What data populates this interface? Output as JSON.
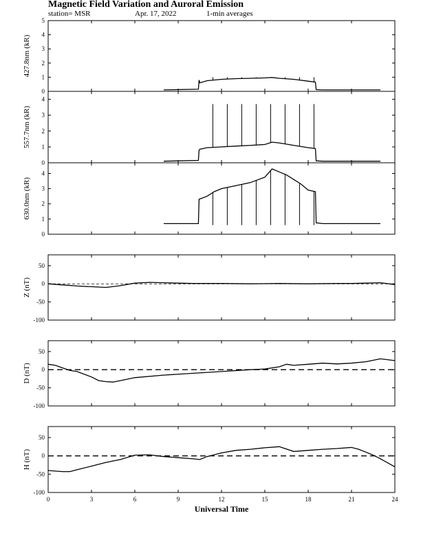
{
  "header": {
    "title": "Magnetic Field Variation and Auroral Emission",
    "station": "station= MSR",
    "date": "Apr. 17, 2022",
    "averaging": "1-min averages"
  },
  "colors": {
    "trace": "#000000",
    "background": "#ffffff"
  },
  "chart_data": [
    {
      "type": "line",
      "ylabel": "427.8nm (kR)",
      "ylim": [
        0,
        5
      ],
      "yticks": [
        0,
        1,
        2,
        3,
        4,
        5
      ],
      "xlim": [
        0,
        24
      ],
      "x": [
        8.0,
        10.4,
        10.45,
        10.5,
        11,
        12,
        13,
        14,
        15,
        15.5,
        16,
        17,
        18,
        18.5,
        18.55,
        19,
        23
      ],
      "values": [
        0.1,
        0.15,
        0.8,
        0.6,
        0.75,
        0.85,
        0.9,
        0.92,
        0.95,
        0.98,
        0.92,
        0.85,
        0.72,
        0.65,
        0.12,
        0.1,
        0.1
      ],
      "spikes": {
        "x": [
          11.4,
          12.4,
          13.4,
          14.4,
          15.4,
          16.4,
          17.4,
          18.4
        ],
        "top": 1.0
      }
    },
    {
      "type": "line",
      "ylabel": "557.7nm (kR)",
      "ylim": [
        0,
        4.5
      ],
      "yticks": [
        0,
        1,
        2,
        3,
        4
      ],
      "xlim": [
        0,
        24
      ],
      "x": [
        8.0,
        10.4,
        10.45,
        10.5,
        11,
        12,
        13,
        14,
        15,
        15.5,
        16,
        17,
        18,
        18.5,
        18.55,
        19,
        23
      ],
      "values": [
        0.1,
        0.15,
        0.8,
        0.85,
        0.95,
        1.0,
        1.05,
        1.1,
        1.15,
        1.3,
        1.25,
        1.1,
        0.95,
        0.9,
        0.12,
        0.1,
        0.1
      ],
      "spikes": {
        "x": [
          11.4,
          12.4,
          13.4,
          14.4,
          15.4,
          16.4,
          17.4,
          18.4
        ],
        "top": 3.7
      }
    },
    {
      "type": "line",
      "ylabel": "630.0nm (kR)",
      "ylim": [
        0,
        4.7
      ],
      "yticks": [
        0,
        1,
        2,
        3,
        4
      ],
      "xlim": [
        0,
        24
      ],
      "x": [
        8.0,
        10.4,
        10.45,
        11,
        11.5,
        12,
        13,
        14,
        15,
        15.5,
        16,
        16.5,
        17,
        17.5,
        18,
        18.5,
        18.55,
        19,
        23
      ],
      "values": [
        0.7,
        0.7,
        2.3,
        2.5,
        2.8,
        3.0,
        3.2,
        3.4,
        3.75,
        4.3,
        4.1,
        3.9,
        3.6,
        3.3,
        2.9,
        2.8,
        0.75,
        0.7,
        0.7
      ],
      "spikes": {
        "x": [
          11.4,
          12.4,
          13.4,
          14.4,
          15.4,
          16.4,
          17.4,
          18.4
        ],
        "base": 0.6
      }
    },
    {
      "type": "line",
      "ylabel": "Z (nT)",
      "ylim": [
        -100,
        80
      ],
      "yticks": [
        -100,
        -50,
        0,
        50
      ],
      "xlim": [
        0,
        24
      ],
      "zero_line": "thin-dashed",
      "x": [
        0,
        1,
        2,
        3,
        4,
        5,
        6,
        7,
        8,
        9,
        10,
        12,
        14,
        16,
        18,
        20,
        21,
        22,
        23,
        24
      ],
      "values": [
        0,
        -3,
        -6,
        -8,
        -10,
        -5,
        2,
        4,
        3,
        2,
        1,
        1,
        0,
        1,
        0,
        1,
        1,
        2,
        3,
        -2
      ]
    },
    {
      "type": "line",
      "ylabel": "D (nT)",
      "ylim": [
        -100,
        80
      ],
      "yticks": [
        -100,
        -50,
        0,
        50
      ],
      "xlim": [
        0,
        24
      ],
      "zero_line": "dashed",
      "x": [
        0,
        0.5,
        1,
        1.5,
        2,
        3,
        3.5,
        4,
        4.5,
        5,
        6,
        8,
        10,
        12,
        14,
        15,
        16,
        16.5,
        17,
        18,
        19,
        20,
        21,
        22,
        23,
        24
      ],
      "values": [
        15,
        12,
        5,
        -2,
        -5,
        -20,
        -30,
        -33,
        -34,
        -30,
        -22,
        -15,
        -10,
        -5,
        0,
        2,
        8,
        15,
        12,
        15,
        18,
        16,
        18,
        22,
        30,
        25
      ]
    },
    {
      "type": "line",
      "ylabel": "H (nT)",
      "ylim": [
        -100,
        80
      ],
      "yticks": [
        -100,
        -50,
        0,
        50
      ],
      "xlim": [
        0,
        24
      ],
      "xticks": [
        0,
        3,
        6,
        9,
        12,
        15,
        18,
        21,
        24
      ],
      "xlabel": "Universal Time",
      "zero_line": "dashed",
      "x": [
        0,
        1,
        1.5,
        2,
        3,
        4,
        5,
        6,
        7,
        8,
        9,
        10,
        10.5,
        11,
        12,
        13,
        14,
        15,
        16,
        17,
        18,
        19,
        20,
        21,
        21.5,
        22,
        22.5,
        23,
        24
      ],
      "values": [
        -40,
        -43,
        -43,
        -38,
        -28,
        -18,
        -10,
        2,
        3,
        -2,
        -5,
        -8,
        -10,
        -2,
        8,
        15,
        18,
        22,
        25,
        12,
        15,
        18,
        20,
        23,
        18,
        10,
        2,
        -8,
        -30
      ]
    }
  ]
}
